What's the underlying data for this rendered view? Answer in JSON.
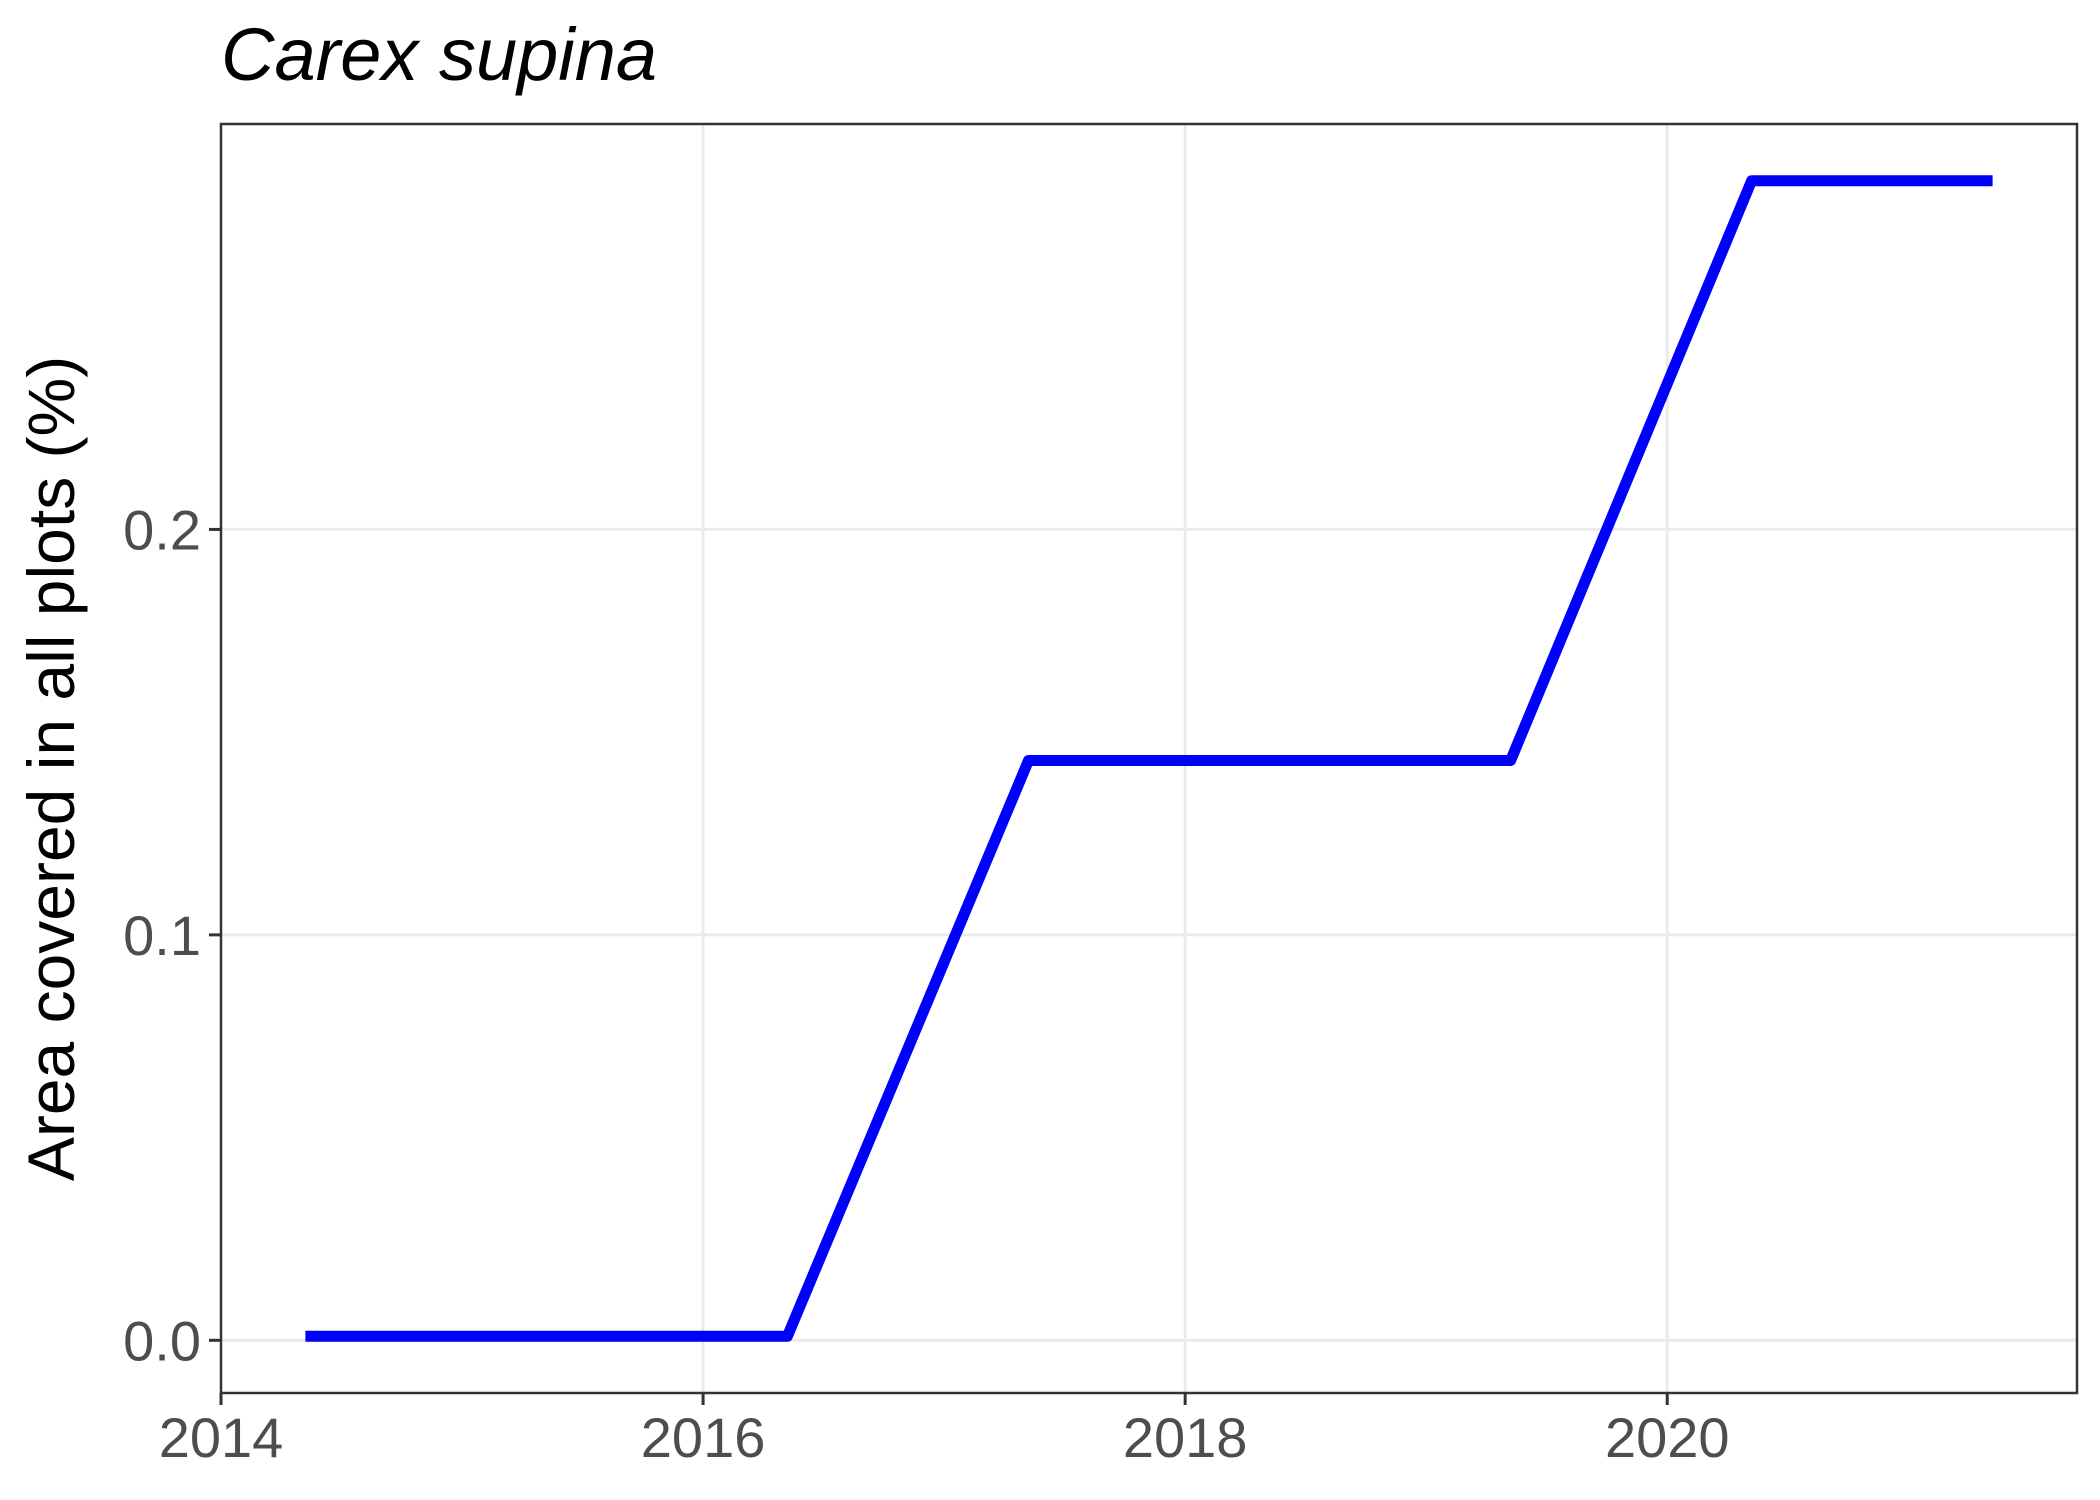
{
  "chart_data": {
    "type": "line",
    "title": "Carex supina",
    "xlabel": "",
    "ylabel": "Area covered in all plots (%)",
    "xlim": [
      2014,
      2021.7
    ],
    "ylim": [
      -0.013,
      0.3
    ],
    "x_ticks": [
      2014,
      2016,
      2018,
      2020
    ],
    "x_tick_labels": [
      "2014",
      "2016",
      "2018",
      "2020"
    ],
    "y_ticks": [
      0.0,
      0.1,
      0.2
    ],
    "y_tick_labels": [
      "0.0",
      "0.1",
      "0.2"
    ],
    "grid": true,
    "legend": "none",
    "series": [
      {
        "color": "#0000ff",
        "x": [
          2014.35,
          2015.35,
          2016.35,
          2017.35,
          2018.35,
          2019.35,
          2020.35,
          2021.35
        ],
        "values": [
          0.001,
          0.001,
          0.001,
          0.143,
          0.143,
          0.143,
          0.286,
          0.286
        ]
      }
    ]
  }
}
